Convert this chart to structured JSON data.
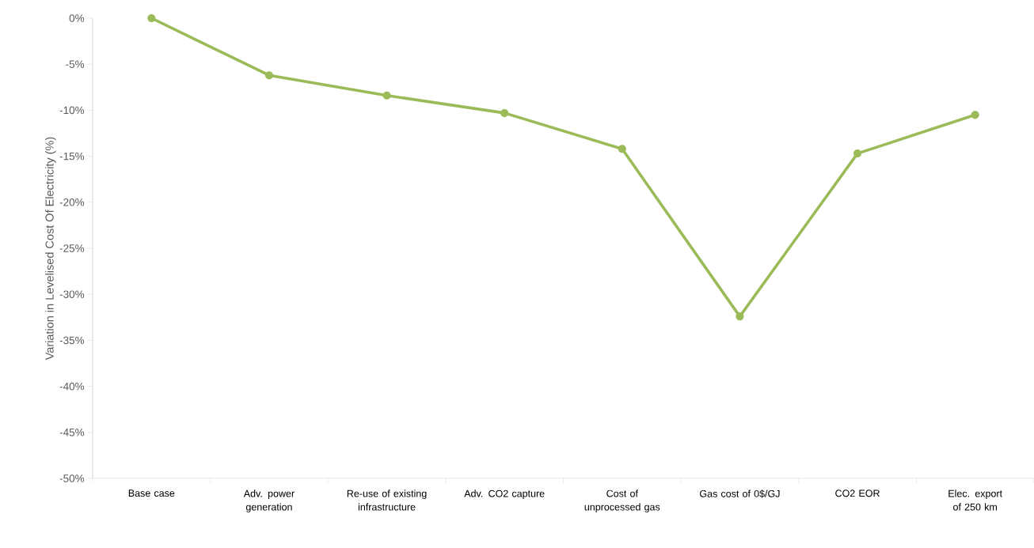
{
  "chart_data": {
    "type": "line",
    "ylabel": "Variation in Levelised Cost Of Electricity (%)",
    "categories": [
      "Base case",
      "Adv. power generation",
      "Re-use of existing infrastructure",
      "Adv. CO2 capture",
      "Cost of unprocessed gas",
      "Gas cost of 0$/GJ",
      "CO2 EOR",
      "Elec. export of 250 km"
    ],
    "values": [
      0,
      -6.2,
      -8.4,
      -10.3,
      -14.2,
      -32.4,
      -14.7,
      -10.5
    ],
    "color": "#9bbb59",
    "marker": "circle",
    "ylim": [
      -50,
      0
    ],
    "yticks": [
      {
        "value": 0,
        "label": "0%"
      },
      {
        "value": -5,
        "label": "-5%"
      },
      {
        "value": -10,
        "label": "-10%"
      },
      {
        "value": -15,
        "label": "-15%"
      },
      {
        "value": -20,
        "label": "-20%"
      },
      {
        "value": -25,
        "label": "-25%"
      },
      {
        "value": -30,
        "label": "-30%"
      },
      {
        "value": -35,
        "label": "-35%"
      },
      {
        "value": -40,
        "label": "-40%"
      },
      {
        "value": -45,
        "label": "-45%"
      },
      {
        "value": -50,
        "label": "-50%"
      }
    ]
  }
}
